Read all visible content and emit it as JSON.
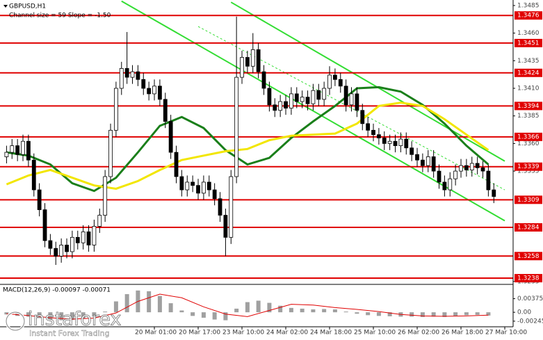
{
  "chart_data": [
    {
      "type": "candlestick",
      "title": "GBPUSD,H1",
      "subtitle": "Channel size = 59 Slope = -1.50",
      "categories": [
        null,
        null,
        null,
        null,
        null,
        null,
        null,
        null,
        null,
        null,
        null,
        null,
        null,
        null,
        null,
        null,
        null,
        null,
        null,
        null,
        null,
        null,
        null,
        null,
        null,
        null,
        null,
        "20 Mar 01:00",
        null,
        null,
        null,
        null,
        null,
        null,
        null,
        "20 Mar 17:00",
        null,
        null,
        null,
        null,
        null,
        null,
        null,
        "23 Mar 10:00",
        null,
        null,
        null,
        null,
        null,
        null,
        null,
        "24 Mar 02:00",
        null,
        null,
        null,
        null,
        null,
        null,
        null,
        "24 Mar 18:00",
        null,
        null,
        null,
        null,
        null,
        null,
        null,
        "25 Mar 10:00",
        null,
        null,
        null,
        null,
        null,
        null,
        null,
        "26 Mar 02:00",
        null,
        null,
        null,
        null,
        null,
        null,
        null,
        "26 Mar 18:00",
        null,
        null,
        null,
        null,
        null,
        null,
        null,
        "27 Mar 10:00"
      ],
      "open": [
        1.3348,
        1.3352,
        1.3358,
        1.335,
        1.3362,
        1.3345,
        1.3318,
        1.33,
        1.3272,
        1.3265,
        1.3258,
        1.3268,
        1.3262,
        1.3275,
        1.327,
        1.328,
        1.3268,
        1.3285,
        1.3295,
        1.333,
        1.3372,
        1.341,
        1.3428,
        1.342,
        1.3425,
        1.3418,
        1.341,
        1.3405,
        1.3412,
        1.34,
        1.338,
        1.3352,
        1.333,
        1.3318,
        1.3325,
        1.3322,
        1.3315,
        1.3325,
        1.3318,
        1.331,
        1.3295,
        1.3275,
        1.333,
        1.342,
        1.3438,
        1.343,
        1.3445,
        1.3425,
        1.341,
        1.3395,
        1.339,
        1.3398,
        1.3392,
        1.3405,
        1.3398,
        1.3402,
        1.3396,
        1.3408,
        1.34,
        1.341,
        1.3422,
        1.3418,
        1.3412,
        1.3395,
        1.3405,
        1.339,
        1.3378,
        1.3372,
        1.3368,
        1.3365,
        1.336,
        1.3362,
        1.3358,
        1.3364,
        1.3356,
        1.335,
        1.3345,
        1.334,
        1.3348,
        1.3335,
        1.3325,
        1.3318,
        1.3328,
        1.3335,
        1.334,
        1.3336,
        1.3342,
        1.3338,
        1.3335,
        1.3318,
        null,
        null
      ],
      "high": [
        1.3358,
        1.3364,
        1.3364,
        1.3368,
        1.3368,
        1.3351,
        1.3324,
        1.3306,
        1.3278,
        1.3271,
        1.3274,
        1.3274,
        1.3281,
        1.3281,
        1.3286,
        1.3286,
        1.3291,
        1.3301,
        1.3336,
        1.3378,
        1.3416,
        1.3434,
        1.3461,
        1.3431,
        1.3431,
        1.3424,
        1.3416,
        1.3418,
        1.3418,
        1.3406,
        1.3386,
        1.3358,
        1.3336,
        1.3331,
        1.3331,
        1.3328,
        1.3331,
        1.3331,
        1.3324,
        1.3316,
        1.3301,
        1.3336,
        1.3475,
        1.3444,
        1.3444,
        1.346,
        1.3451,
        1.3431,
        1.3416,
        1.3401,
        1.3404,
        1.3404,
        1.3411,
        1.3411,
        1.3408,
        1.3408,
        1.3414,
        1.3414,
        1.3416,
        1.343,
        1.3428,
        1.3424,
        1.3418,
        1.3411,
        1.3411,
        1.3396,
        1.3384,
        1.3378,
        1.3374,
        1.3371,
        1.3368,
        1.3368,
        1.337,
        1.337,
        1.3362,
        1.3356,
        1.3351,
        1.3354,
        1.3354,
        1.3341,
        1.3331,
        1.3334,
        1.3341,
        1.3346,
        1.3346,
        1.3348,
        1.3348,
        1.3344,
        1.3341,
        1.3324,
        null,
        null
      ],
      "low": [
        1.3342,
        1.3346,
        1.3344,
        1.3344,
        1.3339,
        1.3312,
        1.3294,
        1.3266,
        1.3259,
        1.325,
        1.3252,
        1.3256,
        1.3256,
        1.3264,
        1.3264,
        1.3262,
        1.3262,
        1.3279,
        1.3289,
        1.3324,
        1.3366,
        1.3404,
        1.3414,
        1.3414,
        1.3412,
        1.3404,
        1.3399,
        1.3399,
        1.3394,
        1.3374,
        1.3346,
        1.3324,
        1.3312,
        1.3312,
        1.3316,
        1.3309,
        1.3309,
        1.3312,
        1.3304,
        1.3289,
        1.3258,
        1.3269,
        1.3324,
        1.3414,
        1.3424,
        1.3424,
        1.3419,
        1.3404,
        1.3389,
        1.3384,
        1.3384,
        1.3386,
        1.3386,
        1.3392,
        1.3392,
        1.339,
        1.339,
        1.3394,
        1.3394,
        1.3404,
        1.3412,
        1.3406,
        1.3389,
        1.3389,
        1.3384,
        1.3372,
        1.3366,
        1.3362,
        1.3359,
        1.3354,
        1.3354,
        1.3352,
        1.3352,
        1.335,
        1.3344,
        1.3339,
        1.3334,
        1.3334,
        1.3329,
        1.3319,
        1.3312,
        1.3312,
        1.3322,
        1.3329,
        1.333,
        1.333,
        1.3332,
        1.3329,
        1.3312,
        1.3306,
        null,
        null
      ],
      "close": [
        1.3352,
        1.3358,
        1.335,
        1.3362,
        1.3345,
        1.3318,
        1.33,
        1.3272,
        1.3265,
        1.3258,
        1.3268,
        1.3262,
        1.3275,
        1.327,
        1.328,
        1.3268,
        1.3285,
        1.3295,
        1.333,
        1.3372,
        1.341,
        1.3428,
        1.342,
        1.3425,
        1.3418,
        1.341,
        1.3405,
        1.3412,
        1.34,
        1.338,
        1.3352,
        1.333,
        1.3318,
        1.3325,
        1.3322,
        1.3315,
        1.3325,
        1.3318,
        1.331,
        1.3295,
        1.3275,
        1.333,
        1.342,
        1.3438,
        1.343,
        1.3445,
        1.3425,
        1.341,
        1.3395,
        1.339,
        1.3398,
        1.3392,
        1.3405,
        1.3398,
        1.3402,
        1.3396,
        1.3408,
        1.34,
        1.341,
        1.3422,
        1.3418,
        1.3412,
        1.3395,
        1.3405,
        1.339,
        1.3378,
        1.3372,
        1.3368,
        1.3365,
        1.336,
        1.3362,
        1.3358,
        1.3364,
        1.3356,
        1.335,
        1.3345,
        1.334,
        1.3348,
        1.3335,
        1.3325,
        1.3318,
        1.3328,
        1.3335,
        1.334,
        1.3336,
        1.3342,
        1.3338,
        1.3335,
        1.3318,
        1.3312,
        null,
        null
      ],
      "up_color": "#ffffff",
      "down_color": "#000000",
      "ylim": [
        1.3233,
        1.349
      ],
      "yticks": [
        1.3485,
        {
          "value": 1.346,
          "label": "1.3460"
        },
        1.3435,
        {
          "value": 1.341,
          "label": "1.3410"
        },
        1.3385,
        {
          "value": 1.336,
          "label": "1.3360"
        },
        1.3335,
        1.3235
      ],
      "levels": [
        1.3476,
        1.3451,
        1.3424,
        1.3394,
        1.3366,
        1.3339,
        1.3309,
        1.3284,
        1.3258,
        1.3238
      ],
      "level_color": "#e00000",
      "lines": [
        {
          "color": "#1a7f1a",
          "x": [
            0,
            4,
            8,
            12,
            16,
            20,
            24,
            28,
            32,
            36,
            40,
            44,
            48,
            52,
            56,
            60,
            64,
            68,
            72,
            76,
            80,
            84,
            88
          ],
          "values": [
            1.3352,
            1.3349,
            1.3341,
            1.3324,
            1.3317,
            1.3329,
            1.3352,
            1.3376,
            1.3384,
            1.3374,
            1.3354,
            1.3341,
            1.3347,
            1.3365,
            1.338,
            1.3394,
            1.341,
            1.3411,
            1.3407,
            1.3395,
            1.3378,
            1.3358,
            1.3341
          ]
        },
        {
          "color": "#f2e600",
          "x": [
            0,
            4,
            8,
            12,
            16,
            20,
            24,
            28,
            32,
            36,
            40,
            44,
            48,
            52,
            56,
            60,
            64,
            68,
            72,
            76,
            80,
            84,
            88
          ],
          "values": [
            1.3323,
            1.3331,
            1.3336,
            1.3329,
            1.3322,
            1.3319,
            1.3326,
            1.3336,
            1.3345,
            1.3349,
            1.3353,
            1.3355,
            1.3363,
            1.3367,
            1.3368,
            1.3369,
            1.3378,
            1.3394,
            1.3397,
            1.3394,
            1.3382,
            1.3368,
            1.3354
          ]
        }
      ],
      "channel": [
        {
          "color": "#33dd33",
          "x": [
            41,
            91
          ],
          "values": [
            1.3488,
            1.3344
          ]
        },
        {
          "color": "#33dd33",
          "x": [
            21,
            91
          ],
          "values": [
            1.3489,
            1.329
          ]
        },
        {
          "color": "#33dd33",
          "dashed": true,
          "x": [
            35,
            91
          ],
          "values": [
            1.3466,
            1.3318
          ]
        }
      ],
      "watermark": {
        "brand": "instaforex",
        "tagline": "Instant Forex Trading"
      }
    },
    {
      "type": "macd",
      "title": "MACD(12,26,9) -0.00097 -0.00071",
      "ylim": [
        -0.004,
        0.0075
      ],
      "yticks": [
        0.00375,
        {
          "value": 0,
          "label": "0.00"
        },
        -0.00245
      ],
      "histogram": {
        "color": "#a0a0a0",
        "x": [
          0,
          2,
          4,
          6,
          8,
          10,
          12,
          14,
          16,
          18,
          20,
          22,
          24,
          26,
          28,
          30,
          32,
          34,
          36,
          38,
          40,
          42,
          44,
          46,
          48,
          50,
          52,
          54,
          56,
          58,
          60,
          62,
          64,
          66,
          68,
          70,
          72,
          74,
          76,
          78,
          80,
          82,
          84,
          86,
          88
        ],
        "values": [
          -0.0006,
          -0.001,
          -0.0012,
          -0.0016,
          -0.002,
          -0.0022,
          -0.0021,
          -0.0018,
          -0.0012,
          0.0002,
          0.003,
          0.005,
          0.006,
          0.0058,
          0.0045,
          0.0025,
          0.0005,
          -0.001,
          -0.0015,
          -0.002,
          -0.0022,
          0.001,
          0.0028,
          0.0032,
          0.0026,
          0.0018,
          0.0012,
          0.001,
          0.0008,
          0.0009,
          0.0008,
          0.0002,
          -0.0004,
          -0.0008,
          -0.001,
          -0.0011,
          -0.0012,
          -0.0012,
          -0.0013,
          -0.0012,
          -0.0013,
          -0.001,
          -0.0008,
          -0.0007,
          -0.0009
        ]
      },
      "signal": {
        "color": "#e00000",
        "x": [
          0,
          4,
          8,
          12,
          16,
          20,
          24,
          28,
          32,
          36,
          40,
          44,
          48,
          52,
          56,
          60,
          64,
          68,
          72,
          76,
          80,
          84,
          88
        ],
        "values": [
          -0.0004,
          -0.0009,
          -0.0015,
          -0.0019,
          -0.0016,
          -0.0002,
          0.003,
          0.005,
          0.004,
          0.0015,
          -0.0005,
          -0.0012,
          0.0005,
          0.0022,
          0.002,
          0.0013,
          0.0008,
          0.0002,
          -0.0006,
          -0.001,
          -0.0011,
          -0.001,
          -0.0008
        ]
      }
    }
  ]
}
